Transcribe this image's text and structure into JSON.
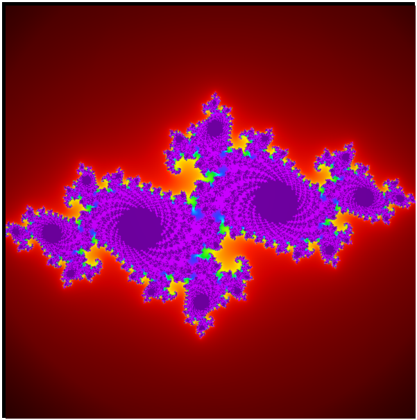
{
  "image": {
    "subject": "julia-set-fractal",
    "palette": {
      "exterior_dark": "#000000",
      "deep_red": "#8b0000",
      "red": "#ff1a00",
      "orange": "#ff8a00",
      "yellow": "#ffff00",
      "green": "#00e600",
      "cyan": "#00ffff",
      "blue": "#2a3cff",
      "magenta": "#c000ff",
      "purple": "#6a00aa"
    },
    "border_color": "#000000",
    "frame_color": "#ffffff"
  }
}
